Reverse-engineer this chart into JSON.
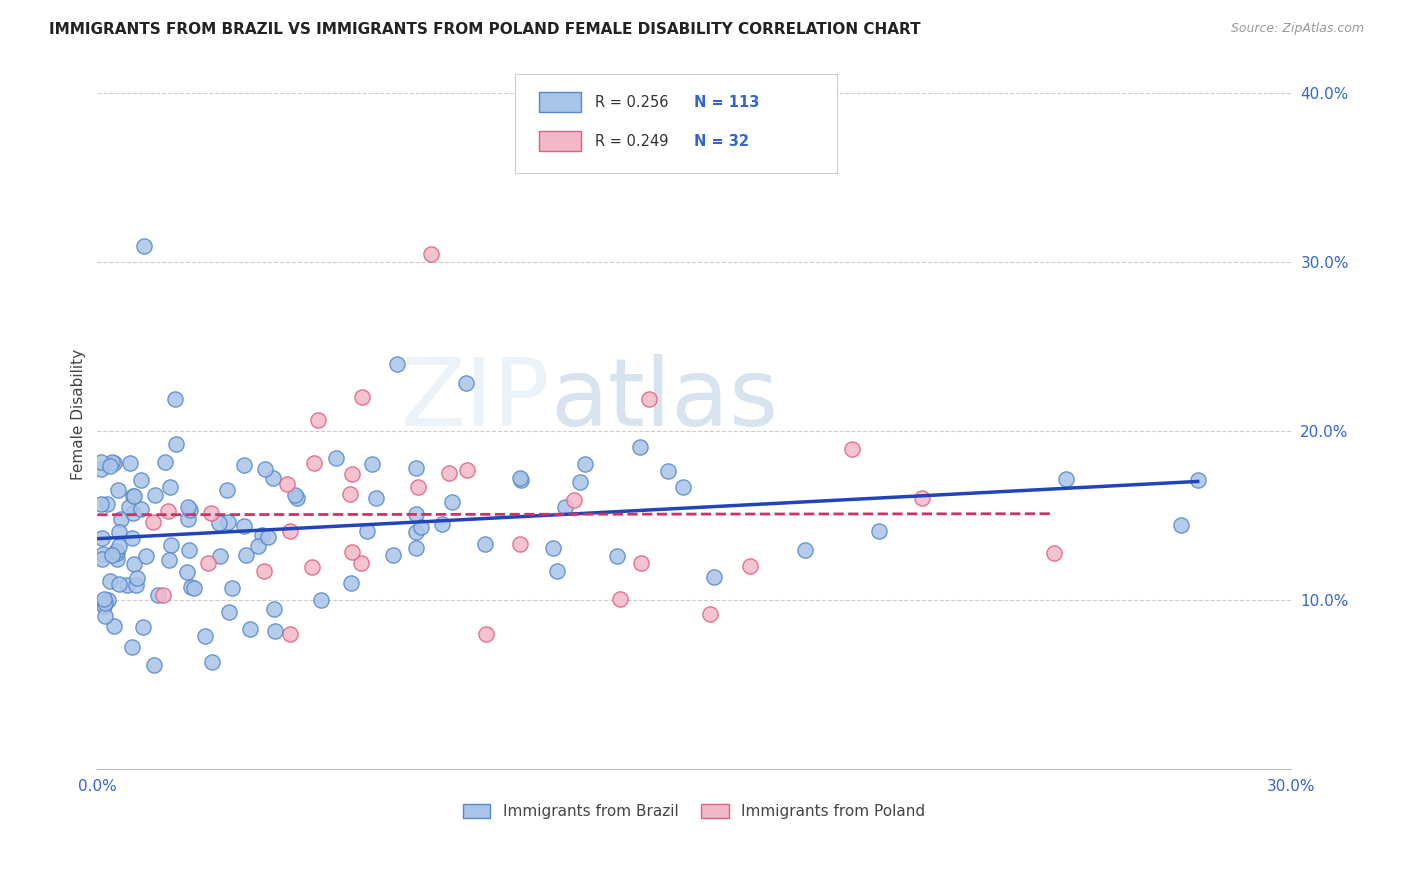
{
  "title": "IMMIGRANTS FROM BRAZIL VS IMMIGRANTS FROM POLAND FEMALE DISABILITY CORRELATION CHART",
  "source": "Source: ZipAtlas.com",
  "ylabel": "Female Disability",
  "xlim": [
    0.0,
    0.3
  ],
  "ylim": [
    0.0,
    0.42
  ],
  "brazil_color": "#aac4e8",
  "brazil_edge_color": "#5588cc",
  "poland_color": "#f4b8c8",
  "poland_edge_color": "#e06080",
  "brazil_line_color": "#2244bb",
  "poland_line_color": "#cc3366",
  "brazil_R": 0.256,
  "brazil_N": 113,
  "poland_R": 0.249,
  "poland_N": 32,
  "legend_label_brazil": "Immigrants from Brazil",
  "legend_label_poland": "Immigrants from Poland",
  "tick_color": "#3366cc",
  "watermark": "ZIPatlas",
  "watermark_zip_color": "#c8d8ee",
  "watermark_atlas_color": "#aabbdd"
}
